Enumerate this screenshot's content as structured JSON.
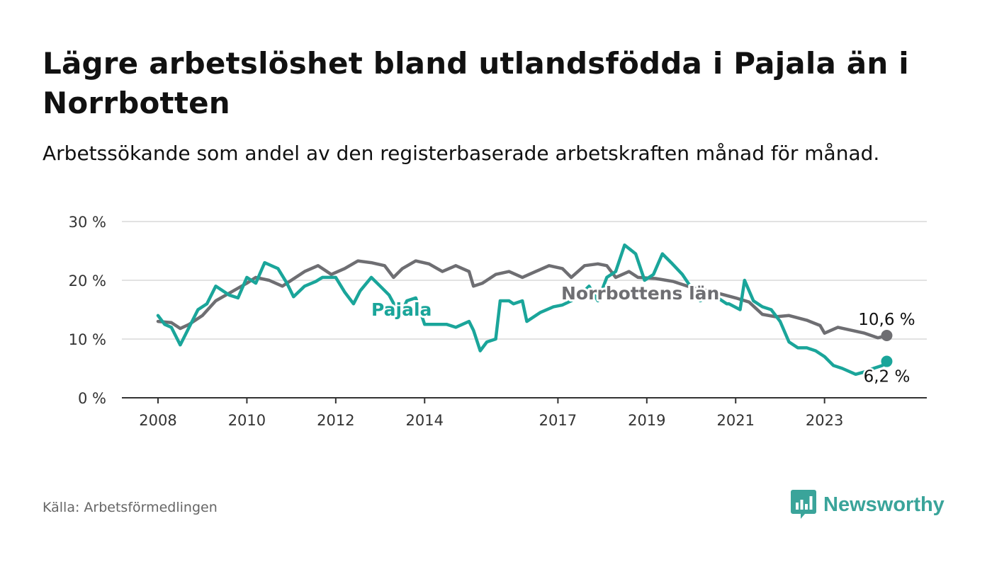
{
  "title": "Lägre arbetslöshet bland utlandsfödda i Pajala än i Norrbotten",
  "subtitle": "Arbetssökande som andel av den registerbaserade arbetskraften månad för månad.",
  "source": "Källa: Arbetsförmedlingen",
  "brand": {
    "name": "Newsworthy",
    "icon": "newsworthy-logo-icon",
    "color": "#3aa49a"
  },
  "colors": {
    "pajala": "#1aa59a",
    "norrbotten": "#6e6e72",
    "grid": "#d9d9d9",
    "axis": "#333333"
  },
  "chart_data": {
    "type": "line",
    "title": "Lägre arbetslöshet bland utlandsfödda i Pajala än i Norrbotten",
    "xlabel": "",
    "ylabel": "",
    "xlim": [
      2008.0,
      2024.6
    ],
    "ylim": [
      0,
      30
    ],
    "y_ticks": [
      0,
      10,
      20,
      30
    ],
    "y_tick_labels": [
      "0 %",
      "10 %",
      "20 %",
      "30 %"
    ],
    "x_ticks": [
      2008,
      2010,
      2012,
      2014,
      2017,
      2019,
      2021,
      2023
    ],
    "x_tick_labels": [
      "2008",
      "2010",
      "2012",
      "2014",
      "2017",
      "2019",
      "2021",
      "2023"
    ],
    "grid": true,
    "series": [
      {
        "name": "Norrbottens län",
        "color": "#6e6e72",
        "last_label": "10,6 %",
        "points": [
          [
            2008.0,
            13.0
          ],
          [
            2008.3,
            12.8
          ],
          [
            2008.5,
            11.8
          ],
          [
            2008.7,
            12.5
          ],
          [
            2009.0,
            14.0
          ],
          [
            2009.3,
            16.5
          ],
          [
            2009.6,
            17.8
          ],
          [
            2010.0,
            19.5
          ],
          [
            2010.2,
            20.5
          ],
          [
            2010.5,
            20.0
          ],
          [
            2010.8,
            19.0
          ],
          [
            2011.0,
            20.0
          ],
          [
            2011.3,
            21.5
          ],
          [
            2011.6,
            22.5
          ],
          [
            2011.9,
            21.0
          ],
          [
            2012.2,
            22.0
          ],
          [
            2012.5,
            23.3
          ],
          [
            2012.8,
            23.0
          ],
          [
            2013.1,
            22.5
          ],
          [
            2013.3,
            20.5
          ],
          [
            2013.5,
            22.0
          ],
          [
            2013.8,
            23.3
          ],
          [
            2014.1,
            22.8
          ],
          [
            2014.4,
            21.5
          ],
          [
            2014.7,
            22.5
          ],
          [
            2015.0,
            21.5
          ],
          [
            2015.1,
            19.0
          ],
          [
            2015.3,
            19.5
          ],
          [
            2015.6,
            21.0
          ],
          [
            2015.9,
            21.5
          ],
          [
            2016.2,
            20.5
          ],
          [
            2016.5,
            21.5
          ],
          [
            2016.8,
            22.5
          ],
          [
            2017.1,
            22.0
          ],
          [
            2017.3,
            20.5
          ],
          [
            2017.6,
            22.5
          ],
          [
            2017.9,
            22.8
          ],
          [
            2018.1,
            22.5
          ],
          [
            2018.3,
            20.5
          ],
          [
            2018.6,
            21.5
          ],
          [
            2018.8,
            20.5
          ],
          [
            2019.2,
            20.3
          ],
          [
            2019.6,
            19.8
          ],
          [
            2020.0,
            18.8
          ],
          [
            2020.5,
            18.0
          ],
          [
            2021.0,
            17.0
          ],
          [
            2021.3,
            16.3
          ],
          [
            2021.6,
            14.2
          ],
          [
            2021.9,
            13.8
          ],
          [
            2022.2,
            14.0
          ],
          [
            2022.6,
            13.2
          ],
          [
            2022.9,
            12.3
          ],
          [
            2023.0,
            11.0
          ],
          [
            2023.3,
            12.0
          ],
          [
            2023.6,
            11.5
          ],
          [
            2023.9,
            11.0
          ],
          [
            2024.2,
            10.2
          ],
          [
            2024.4,
            10.6
          ]
        ]
      },
      {
        "name": "Pajala",
        "color": "#1aa59a",
        "last_label": "6,2 %",
        "points": [
          [
            2008.0,
            14.0
          ],
          [
            2008.15,
            12.5
          ],
          [
            2008.3,
            12.0
          ],
          [
            2008.5,
            9.0
          ],
          [
            2008.7,
            12.0
          ],
          [
            2008.9,
            15.0
          ],
          [
            2009.1,
            16.0
          ],
          [
            2009.3,
            19.0
          ],
          [
            2009.6,
            17.5
          ],
          [
            2009.8,
            17.0
          ],
          [
            2010.0,
            20.5
          ],
          [
            2010.2,
            19.5
          ],
          [
            2010.4,
            23.0
          ],
          [
            2010.7,
            22.0
          ],
          [
            2010.9,
            19.5
          ],
          [
            2011.05,
            17.2
          ],
          [
            2011.3,
            19.0
          ],
          [
            2011.55,
            19.8
          ],
          [
            2011.7,
            20.5
          ],
          [
            2012.0,
            20.5
          ],
          [
            2012.2,
            18.0
          ],
          [
            2012.4,
            16.0
          ],
          [
            2012.55,
            18.2
          ],
          [
            2012.8,
            20.5
          ],
          [
            2013.0,
            19.0
          ],
          [
            2013.2,
            17.5
          ],
          [
            2013.45,
            14.0
          ],
          [
            2013.6,
            16.5
          ],
          [
            2013.8,
            17.0
          ],
          [
            2014.0,
            12.5
          ],
          [
            2014.3,
            12.5
          ],
          [
            2014.5,
            12.5
          ],
          [
            2014.7,
            12.0
          ],
          [
            2015.0,
            13.0
          ],
          [
            2015.1,
            11.5
          ],
          [
            2015.25,
            8.0
          ],
          [
            2015.4,
            9.5
          ],
          [
            2015.6,
            10.0
          ],
          [
            2015.7,
            16.5
          ],
          [
            2015.9,
            16.5
          ],
          [
            2016.0,
            16.0
          ],
          [
            2016.2,
            16.5
          ],
          [
            2016.3,
            13.0
          ],
          [
            2016.6,
            14.5
          ],
          [
            2016.9,
            15.5
          ],
          [
            2017.1,
            15.8
          ],
          [
            2017.3,
            16.5
          ],
          [
            2017.5,
            17.5
          ],
          [
            2017.7,
            19.0
          ],
          [
            2017.9,
            16.5
          ],
          [
            2018.1,
            20.5
          ],
          [
            2018.3,
            21.5
          ],
          [
            2018.5,
            26.0
          ],
          [
            2018.75,
            24.5
          ],
          [
            2018.95,
            20.0
          ],
          [
            2019.15,
            21.0
          ],
          [
            2019.35,
            24.5
          ],
          [
            2019.55,
            23.0
          ],
          [
            2019.8,
            21.0
          ],
          [
            2020.2,
            16.5
          ],
          [
            2020.5,
            17.5
          ],
          [
            2020.8,
            16.0
          ],
          [
            2020.85,
            16.0
          ],
          [
            2021.1,
            15.0
          ],
          [
            2021.2,
            20.0
          ],
          [
            2021.4,
            16.5
          ],
          [
            2021.6,
            15.5
          ],
          [
            2021.8,
            15.0
          ],
          [
            2022.0,
            13.0
          ],
          [
            2022.2,
            9.5
          ],
          [
            2022.4,
            8.5
          ],
          [
            2022.6,
            8.5
          ],
          [
            2022.8,
            8.0
          ],
          [
            2023.0,
            7.0
          ],
          [
            2023.2,
            5.5
          ],
          [
            2023.4,
            5.0
          ],
          [
            2023.7,
            4.0
          ],
          [
            2023.95,
            4.5
          ],
          [
            2024.1,
            5.0
          ],
          [
            2024.3,
            5.5
          ],
          [
            2024.4,
            6.2
          ]
        ]
      }
    ]
  }
}
